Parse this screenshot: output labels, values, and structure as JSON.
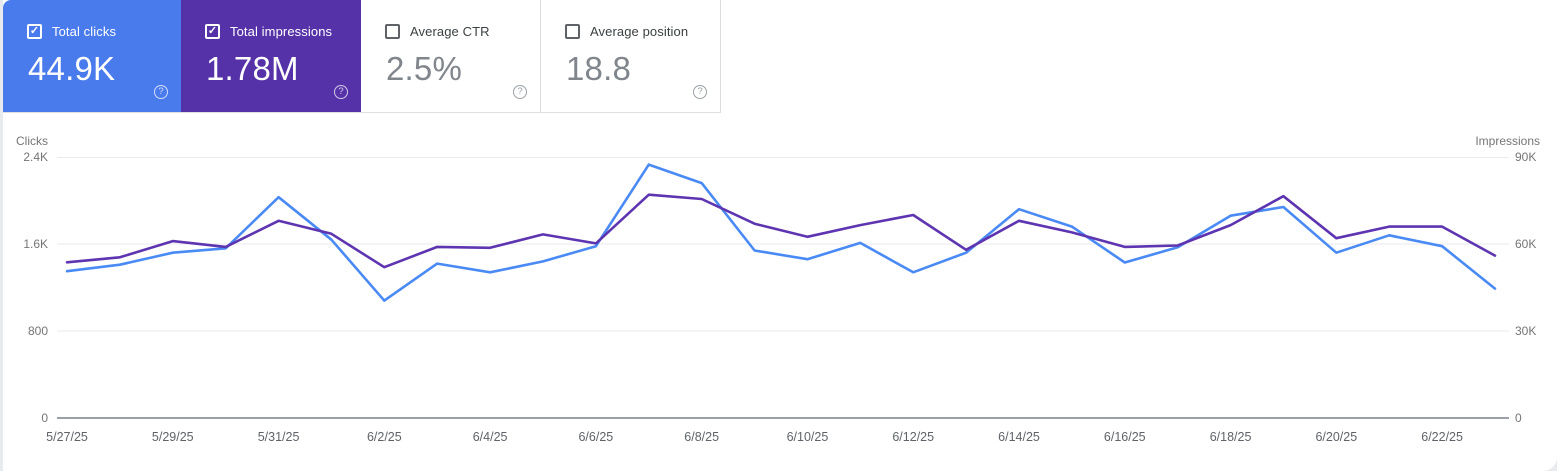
{
  "icons": {
    "help": "?",
    "check": "✓"
  },
  "colors": {
    "clicks_card_bg": "#4a7bec",
    "impressions_card_bg": "#5632a8",
    "clicks_line": "#4a8af4",
    "impressions_line": "#5e35b1"
  },
  "cards": [
    {
      "label": "Total clicks",
      "value": "44.9K",
      "checked": true,
      "bg": "#4a7bec"
    },
    {
      "label": "Total impressions",
      "value": "1.78M",
      "checked": true,
      "bg": "#5632a8"
    },
    {
      "label": "Average CTR",
      "value": "2.5%",
      "checked": false,
      "bg": null
    },
    {
      "label": "Average position",
      "value": "18.8",
      "checked": false,
      "bg": null
    }
  ],
  "chart_data": {
    "type": "line",
    "x": [
      "5/27/25",
      "5/28/25",
      "5/29/25",
      "5/30/25",
      "5/31/25",
      "6/1/25",
      "6/2/25",
      "6/3/25",
      "6/4/25",
      "6/5/25",
      "6/6/25",
      "6/7/25",
      "6/8/25",
      "6/9/25",
      "6/10/25",
      "6/11/25",
      "6/12/25",
      "6/13/25",
      "6/14/25",
      "6/15/25",
      "6/16/25",
      "6/17/25",
      "6/18/25",
      "6/19/25",
      "6/20/25",
      "6/21/25",
      "6/22/25",
      "6/23/25"
    ],
    "x_labels_shown": [
      "5/27/25",
      "5/29/25",
      "5/31/25",
      "6/2/25",
      "6/4/25",
      "6/6/25",
      "6/8/25",
      "6/10/25",
      "6/12/25",
      "6/14/25",
      "6/16/25",
      "6/18/25",
      "6/20/25",
      "6/22/25"
    ],
    "series": [
      {
        "name": "Total clicks",
        "axis": "left",
        "color": "#4a8af4",
        "values": [
          1350,
          1410,
          1520,
          1560,
          2030,
          1640,
          1080,
          1420,
          1340,
          1440,
          1580,
          2330,
          2160,
          1540,
          1460,
          1610,
          1340,
          1520,
          1920,
          1760,
          1430,
          1570,
          1860,
          1940,
          1520,
          1680,
          1580,
          1190
        ]
      },
      {
        "name": "Total impressions",
        "axis": "right",
        "color": "#5e35b1",
        "values": [
          53700,
          55400,
          61000,
          59000,
          68000,
          63500,
          52000,
          59000,
          58700,
          63300,
          60200,
          77000,
          75500,
          67000,
          62500,
          66500,
          70000,
          58000,
          68000,
          64000,
          59000,
          59500,
          66500,
          76500,
          62000,
          66000,
          66000,
          56000
        ]
      }
    ],
    "left_axis": {
      "title": "Clicks",
      "range": [
        0,
        2400
      ],
      "tick_values": [
        0,
        800,
        1600,
        2400
      ],
      "tick_labels": [
        "0",
        "800",
        "1.6K",
        "2.4K"
      ]
    },
    "right_axis": {
      "title": "Impressions",
      "range": [
        0,
        90000
      ],
      "tick_values": [
        0,
        30000,
        60000,
        90000
      ],
      "tick_labels": [
        "0",
        "30K",
        "60K",
        "90K"
      ]
    },
    "grid": "horizontal",
    "legend_position": "none"
  }
}
